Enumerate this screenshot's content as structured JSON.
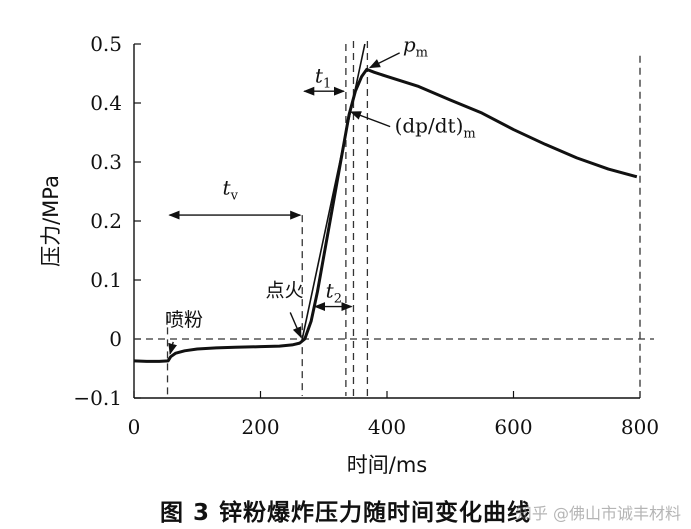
{
  "figure_caption": "图 3    锌粉爆炸压力随时间变化曲线",
  "watermark": "知乎 @佛山市诚丰材料",
  "chart_data": {
    "type": "line",
    "title": "",
    "xlabel": "时间/ms",
    "ylabel": "压力/MPa",
    "xlim": [
      0,
      800
    ],
    "ylim": [
      -0.1,
      0.5
    ],
    "x_ticks": [
      "0",
      "200",
      "400",
      "600",
      "800"
    ],
    "y_ticks": [
      "−0.1",
      "0",
      "0.1",
      "0.2",
      "0.3",
      "0.4",
      "0.5"
    ],
    "grid": false,
    "series": [
      {
        "points": [
          [
            0,
            -0.037
          ],
          [
            20,
            -0.038
          ],
          [
            40,
            -0.038
          ],
          [
            54,
            -0.037
          ],
          [
            58,
            -0.03
          ],
          [
            66,
            -0.024
          ],
          [
            80,
            -0.02
          ],
          [
            100,
            -0.017
          ],
          [
            130,
            -0.015
          ],
          [
            160,
            -0.014
          ],
          [
            200,
            -0.013
          ],
          [
            230,
            -0.012
          ],
          [
            250,
            -0.01
          ],
          [
            262,
            -0.007
          ],
          [
            270,
            0.0
          ],
          [
            280,
            0.03
          ],
          [
            290,
            0.08
          ],
          [
            300,
            0.14
          ],
          [
            315,
            0.23
          ],
          [
            330,
            0.32
          ],
          [
            340,
            0.38
          ],
          [
            350,
            0.42
          ],
          [
            360,
            0.445
          ],
          [
            368,
            0.457
          ],
          [
            380,
            0.452
          ],
          [
            400,
            0.445
          ],
          [
            450,
            0.428
          ],
          [
            500,
            0.405
          ],
          [
            550,
            0.383
          ],
          [
            600,
            0.355
          ],
          [
            650,
            0.33
          ],
          [
            700,
            0.307
          ],
          [
            750,
            0.288
          ],
          [
            795,
            0.275
          ]
        ]
      }
    ],
    "tangent_line": {
      "points": [
        [
          265,
          -0.005
        ],
        [
          365,
          0.5
        ]
      ]
    },
    "reference_lines": {
      "horizontal_dashed_y": 0,
      "vertical_dashed_x": [
        53,
        266,
        335,
        347,
        369,
        800
      ]
    },
    "annotations": {
      "t_v": {
        "label": "t",
        "sub": "v"
      },
      "t_1": {
        "label": "t",
        "sub": "1"
      },
      "t_2": {
        "label": "t",
        "sub": "2"
      },
      "p_m": {
        "label": "p",
        "sub": "m"
      },
      "dpdt": {
        "label": "(dp/dt)",
        "sub": "m"
      },
      "spray": "喷粉",
      "ignition": "点火"
    }
  }
}
